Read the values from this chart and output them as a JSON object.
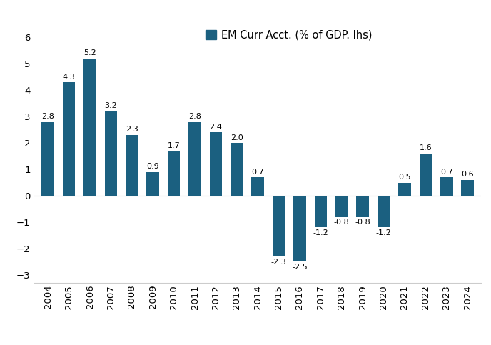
{
  "years": [
    2004,
    2005,
    2006,
    2007,
    2008,
    2009,
    2010,
    2011,
    2012,
    2013,
    2014,
    2015,
    2016,
    2017,
    2018,
    2019,
    2020,
    2021,
    2022,
    2023,
    2024
  ],
  "values": [
    2.8,
    4.3,
    5.2,
    3.2,
    2.3,
    0.9,
    1.7,
    2.8,
    2.4,
    2.0,
    0.7,
    -2.3,
    -2.5,
    -1.2,
    -0.8,
    -0.8,
    -1.2,
    0.5,
    1.6,
    0.7,
    0.6
  ],
  "bar_color": "#1b6080",
  "legend_label": "EM Curr Acct. (% of GDP. lhs)",
  "ylim": [
    -3.3,
    6.5
  ],
  "yticks": [
    -3,
    -2,
    -1,
    0,
    1,
    2,
    3,
    4,
    5,
    6
  ],
  "background_color": "#ffffff",
  "label_fontsize": 8.0,
  "tick_fontsize": 9.5,
  "legend_fontsize": 10.5,
  "bar_width": 0.6
}
